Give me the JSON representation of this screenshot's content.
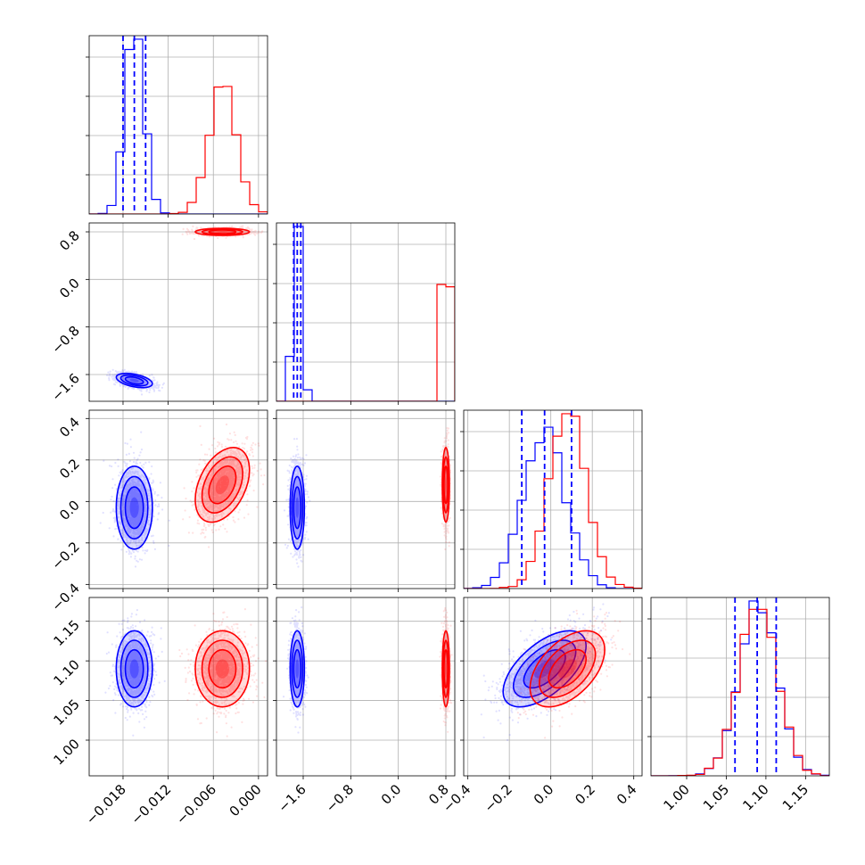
{
  "chart_data": {
    "type": "corner",
    "title": "",
    "parameters": [
      {
        "index": 0,
        "label": "",
        "range": [
          -0.0225,
          0.0012
        ],
        "ticks": [
          -0.018,
          -0.012,
          -0.006,
          0.0
        ],
        "tick_labels": [
          "−0.018",
          "−0.012",
          "−0.006",
          "0.000"
        ]
      },
      {
        "index": 1,
        "label": "",
        "range": [
          -2.05,
          0.95
        ],
        "ticks": [
          -1.6,
          -0.8,
          0.0,
          0.8
        ],
        "tick_labels": [
          "−1.6",
          "−0.8",
          "0.0",
          "0.8"
        ]
      },
      {
        "index": 2,
        "label": "",
        "range": [
          -0.42,
          0.44
        ],
        "ticks": [
          -0.4,
          -0.2,
          0.0,
          0.2,
          0.4
        ],
        "tick_labels": [
          "−0.4",
          "−0.2",
          "0.0",
          "0.2",
          "0.4"
        ]
      },
      {
        "index": 3,
        "label": "",
        "range": [
          0.955,
          1.18
        ],
        "ticks": [
          1.0,
          1.05,
          1.1,
          1.15
        ],
        "tick_labels": [
          "1.00",
          "1.05",
          "1.10",
          "1.15"
        ]
      }
    ],
    "series": [
      {
        "name": "",
        "color": "#0000ff",
        "mean": [
          -0.0165,
          -1.7,
          -0.03,
          1.09
        ],
        "std": [
          0.0012,
          0.06,
          0.1,
          0.024
        ],
        "corr": {
          "0-1": -0.45,
          "0-2": 0.0,
          "0-3": 0.0,
          "1-2": 0.0,
          "1-3": 0.0,
          "2-3": 0.6
        },
        "quantiles": [
          [
            -0.018,
            -0.0165,
            -0.015
          ],
          [
            -1.76,
            -1.7,
            -1.64
          ],
          [
            -0.14,
            -0.03,
            0.1
          ],
          [
            1.061,
            1.089,
            1.113
          ]
        ]
      },
      {
        "name": "",
        "color": "#ff0000",
        "mean": [
          -0.0048,
          0.8,
          0.08,
          1.09
        ],
        "std": [
          0.0018,
          0.03,
          0.09,
          0.024
        ],
        "corr": {
          "0-1": 0.0,
          "0-2": 0.4,
          "0-3": 0.0,
          "1-2": 0.0,
          "1-3": 0.0,
          "2-3": 0.5
        },
        "quantiles": []
      }
    ],
    "grid": true,
    "legend": "none"
  }
}
